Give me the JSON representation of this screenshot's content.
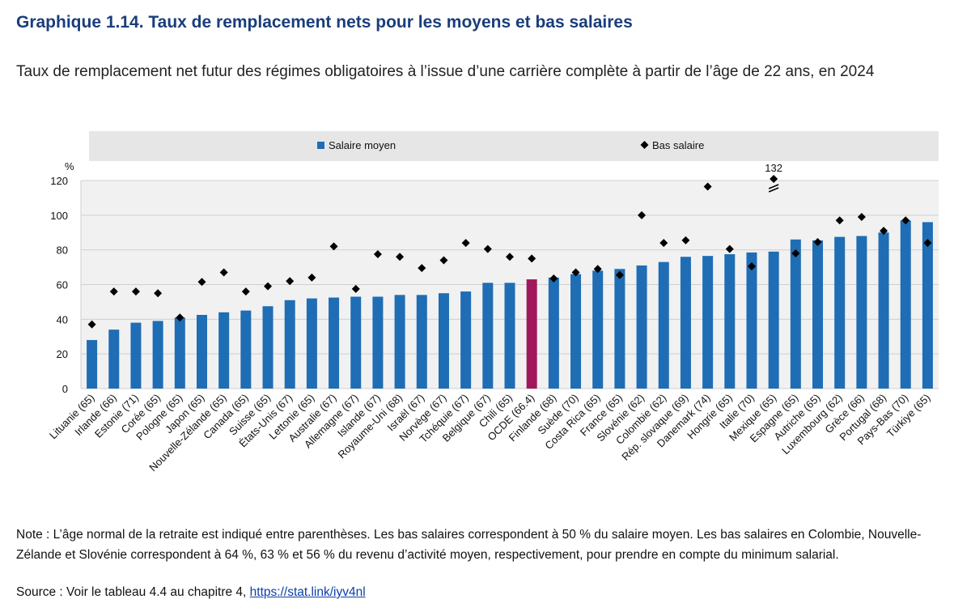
{
  "chart_data": {
    "type": "bar",
    "title": "Graphique 1.14. Taux de remplacement nets pour les moyens et bas salaires",
    "subtitle": "Taux de remplacement net futur des régimes obligatoires à l’issue d’une carrière complète à partir de l’âge de 22 ans, en 2024",
    "y_unit": "%",
    "categories": [
      "Lituanie (65)",
      "Irlande (66)",
      "Estonie (71)",
      "Corée (65)",
      "Pologne (65)",
      "Japon (65)",
      "Nouvelle-Zélande (65)",
      "Canada (65)",
      "Suisse (65)",
      "États-Unis (67)",
      "Lettonie (65)",
      "Australie (67)",
      "Allemagne (67)",
      "Islande (67)",
      "Royaume-Uni (68)",
      "Israël (67)",
      "Norvège (67)",
      "Tchéquie (67)",
      "Belgique (67)",
      "Chili (65)",
      "OCDE (66.4)",
      "Finlande (68)",
      "Suède (70)",
      "Costa Rica (65)",
      "France (65)",
      "Slovénie (62)",
      "Colombie (62)",
      "Rép. slovaque (69)",
      "Danemark (74)",
      "Hongrie (65)",
      "Italie (70)",
      "Mexique (65)",
      "Espagne (65)",
      "Autriche (65)",
      "Luxembourg (62)",
      "Grèce (66)",
      "Portugal (68)",
      "Pays-Bas (70)",
      "Türkiye (65)"
    ],
    "series": [
      {
        "name": "Salaire moyen",
        "mark": "bar",
        "color": "#1f6db5",
        "highlight": {
          "category": "OCDE (66.4)",
          "color": "#a0185b"
        },
        "values": [
          28,
          34,
          38,
          39,
          41,
          42.5,
          44,
          45,
          47.5,
          51,
          52,
          52.5,
          53,
          53,
          54,
          54,
          55,
          56,
          61,
          61,
          63,
          64,
          66,
          68,
          69,
          71,
          73,
          76,
          76.5,
          77.5,
          78.5,
          79,
          86,
          85.5,
          87.5,
          88,
          90,
          97,
          96
        ]
      },
      {
        "name": "Bas salaire",
        "mark": "diamond",
        "color": "#000000",
        "values": [
          37,
          56,
          56,
          55,
          41,
          61.5,
          67,
          56,
          59,
          62,
          64,
          82,
          57.5,
          77.5,
          76,
          69.5,
          74,
          84,
          80.5,
          76,
          75,
          63.5,
          67,
          69,
          65.5,
          100,
          84,
          85.5,
          116.5,
          80.5,
          70.5,
          132,
          78,
          84.5,
          97,
          99,
          91,
          97,
          84
        ],
        "value_labels": [
          null,
          null,
          null,
          null,
          null,
          null,
          null,
          null,
          null,
          null,
          null,
          null,
          null,
          null,
          null,
          null,
          null,
          null,
          null,
          null,
          null,
          null,
          null,
          null,
          null,
          null,
          null,
          null,
          null,
          null,
          null,
          "132",
          null,
          null,
          null,
          null,
          null,
          null,
          null
        ]
      }
    ],
    "ylim": [
      0,
      120
    ],
    "yticks": [
      0,
      20,
      40,
      60,
      80,
      100,
      120
    ],
    "grid": true,
    "note": "Note : L’âge normal de la retraite est indiqué entre parenthèses. Les bas salaires correspondent à 50 % du salaire moyen. Les bas salaires en Colombie, Nouvelle-Zélande et Slovénie correspondent à 64 %, 63 % et 56 % du revenu d’activité moyen, respectivement, pour prendre en compte du minimum salarial.",
    "source": "Source : Voir le tableau 4.4 au chapitre 4,",
    "source_link": "https://stat.link/iyv4nl"
  }
}
